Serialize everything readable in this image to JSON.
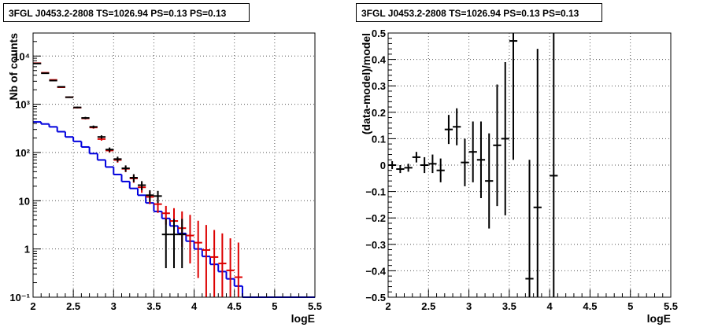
{
  "chart_data": [
    {
      "type": "line",
      "title": "3FGL J0453.2-2808 TS=1026.94 PS=0.13 PS=0.13",
      "xlabel": "logE",
      "ylabel": "Nb of counts",
      "xlim": [
        2,
        5.5
      ],
      "ylim": [
        0.1,
        30000
      ],
      "yscale": "log",
      "grid": true,
      "xticks": [
        "2",
        "2.5",
        "3",
        "3.5",
        "4",
        "4.5",
        "5",
        "5.5"
      ],
      "yticks": [
        {
          "value": 0.1,
          "label": "10⁻¹"
        },
        {
          "value": 1,
          "label": "1"
        },
        {
          "value": 10,
          "label": "10"
        },
        {
          "value": 100,
          "label": "10²"
        },
        {
          "value": 1000,
          "label": "10³"
        },
        {
          "value": 10000,
          "label": "10⁴"
        }
      ],
      "bin_edges": [
        2.0,
        2.1,
        2.2,
        2.3,
        2.4,
        2.5,
        2.6,
        2.7,
        2.8,
        2.9,
        3.0,
        3.1,
        3.2,
        3.3,
        3.4,
        3.5,
        3.6,
        3.7,
        3.8,
        3.9,
        4.0,
        4.1,
        4.2,
        4.3,
        4.4,
        4.5,
        4.6,
        4.7,
        4.8,
        4.9,
        5.0,
        5.1,
        5.2,
        5.3,
        5.4,
        5.5
      ],
      "series": [
        {
          "kind": "data",
          "color": "#000000",
          "x": [
            2.05,
            2.15,
            2.25,
            2.35,
            2.45,
            2.55,
            2.65,
            2.75,
            2.85,
            2.95,
            3.05,
            3.15,
            3.25,
            3.35,
            3.45,
            3.55,
            3.65,
            3.75,
            3.85
          ],
          "y": [
            7000,
            4400,
            3100,
            2300,
            1400,
            860,
            520,
            340,
            210,
            115,
            73,
            47,
            30,
            21,
            13,
            12.5,
            2,
            2,
            2
          ],
          "err_low": [
            100,
            80,
            70,
            60,
            45,
            35,
            28,
            22,
            17,
            12,
            9,
            7,
            5.5,
            4.5,
            3.5,
            3.5,
            1.6,
            1.6,
            1.6
          ],
          "err_high": [
            100,
            80,
            70,
            60,
            45,
            35,
            28,
            22,
            17,
            12,
            9,
            7,
            5.5,
            4.5,
            3.5,
            3.5,
            2.2,
            2.2,
            2.2
          ]
        },
        {
          "kind": "model-points",
          "color": "#dd0000",
          "x": [
            2.05,
            2.15,
            2.25,
            2.35,
            2.45,
            2.55,
            2.65,
            2.75,
            2.85,
            2.95,
            3.05,
            3.15,
            3.25,
            3.35,
            3.45,
            3.55,
            3.65,
            3.75,
            3.85,
            3.95,
            4.05,
            4.15,
            4.25,
            4.35,
            4.45,
            4.55
          ],
          "y": [
            7100,
            4500,
            3200,
            2250,
            1400,
            850,
            510,
            330,
            190,
            110,
            70,
            46,
            29,
            19,
            12,
            8.5,
            5.5,
            3.8,
            2.7,
            1.9,
            1.35,
            0.95,
            0.68,
            0.5,
            0.36,
            0.26
          ],
          "err_low": [
            85,
            67,
            57,
            48,
            37,
            29,
            23,
            18,
            14,
            10.5,
            8.4,
            6.8,
            5.4,
            4.4,
            3.5,
            2.9,
            2.3,
            1.9,
            1.6,
            1.4,
            1.1,
            0.87,
            0.58,
            0.42,
            0.3,
            0.21
          ],
          "err_high": [
            85,
            67,
            57,
            48,
            37,
            29,
            23,
            18,
            14,
            10.5,
            8.4,
            6.8,
            5.4,
            4.4,
            3.5,
            2.9,
            2.3,
            3.2,
            3.3,
            3.2,
            2.5,
            2.2,
            1.8,
            1.6,
            1.3,
            1.1
          ]
        },
        {
          "kind": "histogram",
          "color": "#0000dd",
          "values": [
            430,
            390,
            340,
            270,
            210,
            170,
            130,
            95,
            70,
            50,
            35,
            25,
            18,
            13,
            9,
            6,
            4.3,
            3,
            2.1,
            1.45,
            1,
            0.7,
            0.48,
            0.34,
            0.24,
            0.17,
            0.1,
            0.1,
            0.1,
            0.1,
            0.1,
            0.1,
            0.1,
            0.1,
            0.1
          ]
        }
      ]
    },
    {
      "type": "scatter",
      "title": "3FGL J0453.2-2808 TS=1026.94 PS=0.13 PS=0.13",
      "xlabel": "logE",
      "ylabel": "(data-model)/model",
      "xlim": [
        2,
        5.5
      ],
      "ylim": [
        -0.5,
        0.5
      ],
      "grid": true,
      "xticks": [
        "2",
        "2.5",
        "3",
        "3.5",
        "4",
        "4.5",
        "5",
        "5.5"
      ],
      "yticks": [
        "−0.5",
        "−0.4",
        "−0.3",
        "−0.2",
        "−0.1",
        "0",
        "0.1",
        "0.2",
        "0.3",
        "0.4",
        "0.5"
      ],
      "series": [
        {
          "kind": "residuals",
          "color": "#000000",
          "x": [
            2.05,
            2.15,
            2.25,
            2.35,
            2.45,
            2.55,
            2.65,
            2.75,
            2.85,
            2.95,
            3.05,
            3.15,
            3.25,
            3.35,
            3.45,
            3.55,
            3.75,
            3.85,
            4.05
          ],
          "y": [
            0.0,
            -0.015,
            -0.01,
            0.03,
            0.0,
            0.005,
            -0.02,
            0.135,
            0.145,
            0.01,
            0.05,
            0.02,
            -0.06,
            0.075,
            0.1,
            0.47,
            -0.43,
            -0.16,
            -0.04
          ],
          "err": [
            0.015,
            0.015,
            0.015,
            0.02,
            0.03,
            0.035,
            0.045,
            0.055,
            0.07,
            0.09,
            0.115,
            0.145,
            0.18,
            0.23,
            0.29,
            0.45,
            0.45,
            0.6,
            1.2
          ]
        }
      ]
    }
  ]
}
